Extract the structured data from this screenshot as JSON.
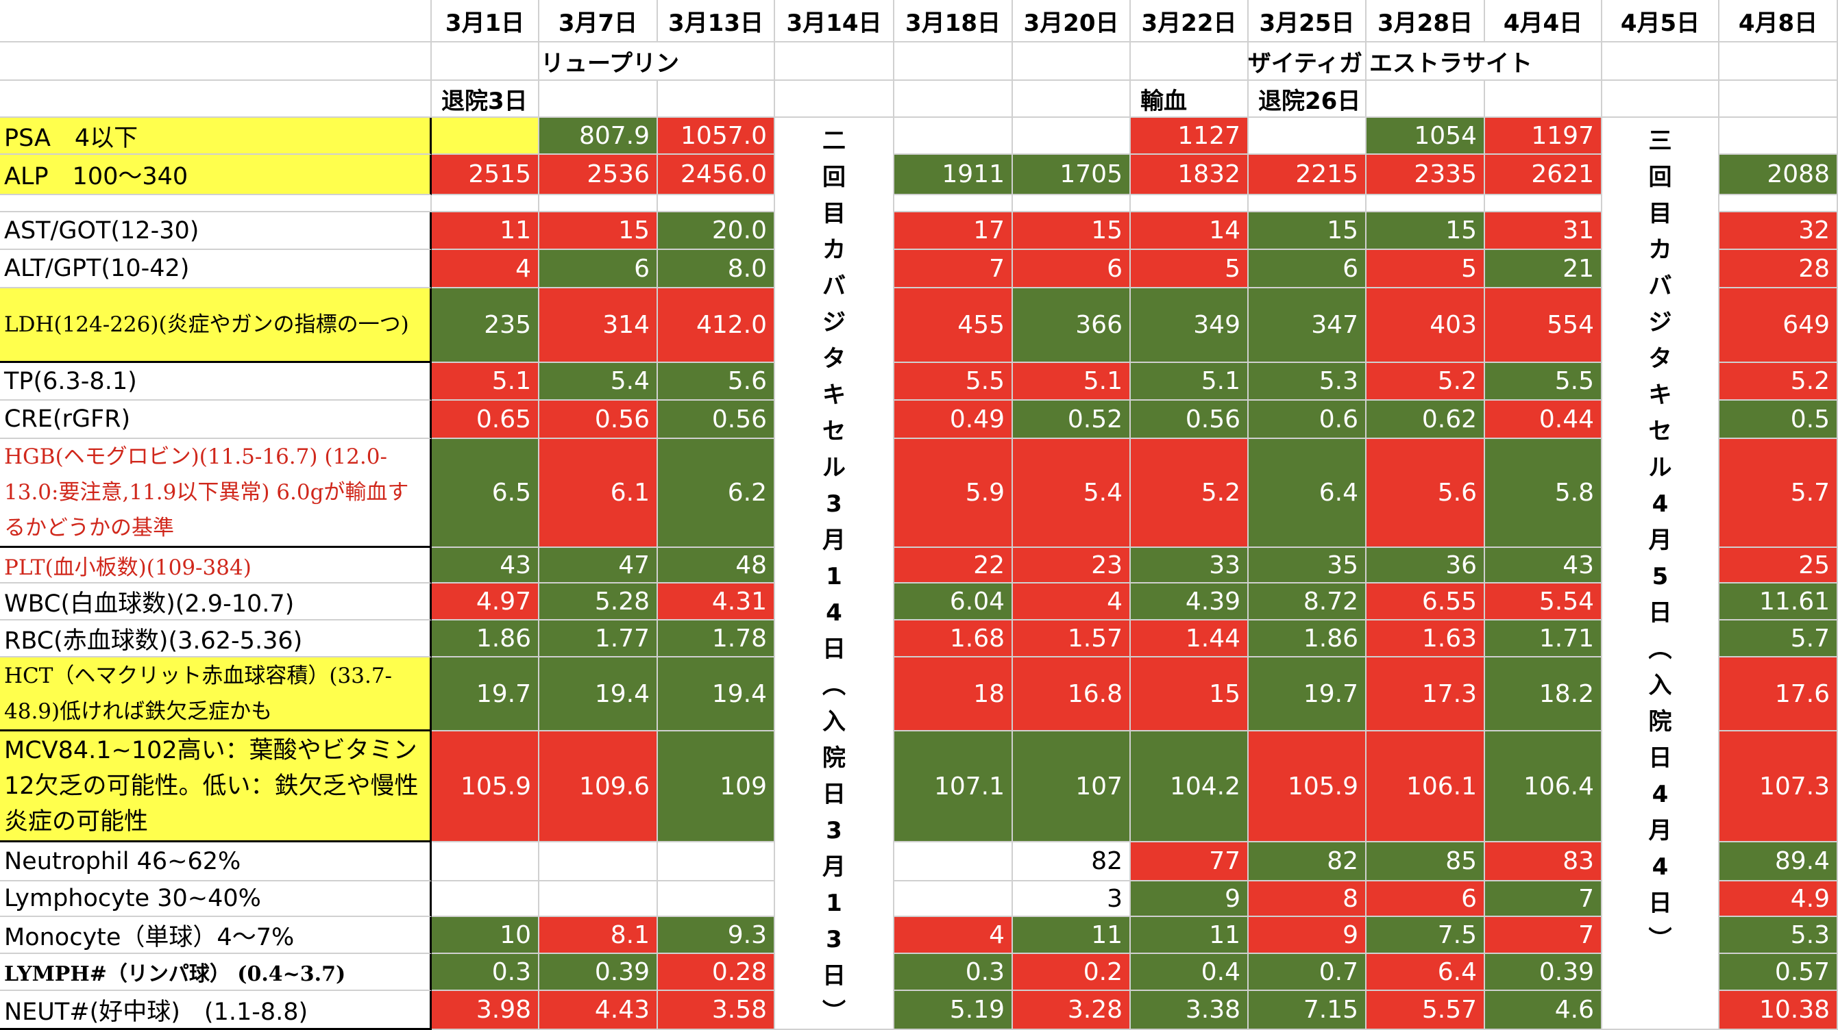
{
  "dates": [
    "3月1日",
    "3月7日",
    "3月13日",
    "3月14日",
    "3月18日",
    "3月20日",
    "3月22日",
    "3月25日",
    "3月28日",
    "4月4日",
    "4月5日",
    "4月8日"
  ],
  "notes": {
    "leuprorelin": "リュープリン",
    "xtandi": "ザイティガ",
    "estracyt": "エストラサイト",
    "discharged3": "退院3日",
    "transfusion": "輸血",
    "discharged26": "退院26日"
  },
  "vertical_notes": {
    "mar14": "二回目カバジタキセル3月14日︵入院日3月13日︶",
    "apr5": "三回目カバジタキセル4月5日︵入院日4月4日︶"
  },
  "colors": {
    "red": "#e8372b",
    "green": "#567b32",
    "yellow": "#ffff4d"
  },
  "rows": [
    {
      "label": "PSA　4以下",
      "yellow": true,
      "values": [
        [
          "",
          "y"
        ],
        [
          "807.9",
          "g"
        ],
        [
          "1057.0",
          "r"
        ],
        [
          "1127",
          "r"
        ],
        [
          "",
          "w"
        ],
        [
          "1054",
          "g"
        ],
        [
          "1197",
          "r"
        ]
      ]
    },
    {
      "label": "ALP　100〜340",
      "yellow": true,
      "values": [
        [
          "2515",
          "r"
        ],
        [
          "2536",
          "r"
        ],
        [
          "2456.0",
          "r"
        ],
        [
          "1911",
          "g"
        ],
        [
          "1705",
          "g"
        ],
        [
          "1832",
          "r"
        ],
        [
          "2215",
          "r"
        ],
        [
          "2335",
          "r"
        ],
        [
          "2621",
          "r"
        ],
        [
          "2088",
          "g"
        ]
      ]
    },
    {
      "label": "AST/GOT(12-30)",
      "values": [
        [
          "11",
          "r"
        ],
        [
          "15",
          "r"
        ],
        [
          "20.0",
          "g"
        ],
        [
          "17",
          "r"
        ],
        [
          "15",
          "r"
        ],
        [
          "14",
          "r"
        ],
        [
          "15",
          "g"
        ],
        [
          "15",
          "g"
        ],
        [
          "31",
          "r"
        ],
        [
          "32",
          "r"
        ]
      ]
    },
    {
      "label": "ALT/GPT(10-42)",
      "values": [
        [
          "4",
          "r"
        ],
        [
          "6",
          "g"
        ],
        [
          "8.0",
          "g"
        ],
        [
          "7",
          "r"
        ],
        [
          "6",
          "r"
        ],
        [
          "5",
          "r"
        ],
        [
          "6",
          "g"
        ],
        [
          "5",
          "r"
        ],
        [
          "21",
          "g"
        ],
        [
          "28",
          "r"
        ]
      ]
    },
    {
      "label": "LDH(124-226)(炎症やガンの指標の一つ)",
      "yellow": true,
      "values": [
        [
          "235",
          "g"
        ],
        [
          "314",
          "r"
        ],
        [
          "412.0",
          "r"
        ],
        [
          "455",
          "r"
        ],
        [
          "366",
          "g"
        ],
        [
          "349",
          "g"
        ],
        [
          "347",
          "g"
        ],
        [
          "403",
          "r"
        ],
        [
          "554",
          "r"
        ],
        [
          "649",
          "r"
        ]
      ]
    },
    {
      "label": "TP(6.3-8.1)",
      "values": [
        [
          "5.1",
          "r"
        ],
        [
          "5.4",
          "g"
        ],
        [
          "5.6",
          "g"
        ],
        [
          "5.5",
          "r"
        ],
        [
          "5.1",
          "r"
        ],
        [
          "5.1",
          "g"
        ],
        [
          "5.3",
          "g"
        ],
        [
          "5.2",
          "r"
        ],
        [
          "5.5",
          "g"
        ],
        [
          "5.2",
          "r"
        ]
      ]
    },
    {
      "label": "CRE(rGFR)",
      "values": [
        [
          "0.65",
          "r"
        ],
        [
          "0.56",
          "r"
        ],
        [
          "0.56",
          "g"
        ],
        [
          "0.49",
          "r"
        ],
        [
          "0.52",
          "g"
        ],
        [
          "0.56",
          "g"
        ],
        [
          "0.6",
          "g"
        ],
        [
          "0.62",
          "g"
        ],
        [
          "0.44",
          "r"
        ],
        [
          "0.5",
          "g"
        ]
      ]
    },
    {
      "label": "HGB(ヘモグロビン)(11.5-16.7) (12.0-13.0:要注意,11.9以下異常) 6.0gが輸血するかどうかの基準",
      "values": [
        [
          "6.5",
          "g"
        ],
        [
          "6.1",
          "r"
        ],
        [
          "6.2",
          "g"
        ],
        [
          "5.9",
          "r"
        ],
        [
          "5.4",
          "r"
        ],
        [
          "5.2",
          "r"
        ],
        [
          "6.4",
          "g"
        ],
        [
          "5.6",
          "r"
        ],
        [
          "5.8",
          "g"
        ],
        [
          "5.7",
          "r"
        ]
      ]
    },
    {
      "label": "PLT(血小板数)(109-384)",
      "values": [
        [
          "43",
          "g"
        ],
        [
          "47",
          "g"
        ],
        [
          "48",
          "g"
        ],
        [
          "22",
          "r"
        ],
        [
          "23",
          "r"
        ],
        [
          "33",
          "g"
        ],
        [
          "35",
          "g"
        ],
        [
          "36",
          "g"
        ],
        [
          "43",
          "g"
        ],
        [
          "25",
          "r"
        ]
      ]
    },
    {
      "label": "WBC(白血球数)(2.9-10.7)",
      "values": [
        [
          "4.97",
          "r"
        ],
        [
          "5.28",
          "g"
        ],
        [
          "4.31",
          "r"
        ],
        [
          "6.04",
          "g"
        ],
        [
          "4",
          "r"
        ],
        [
          "4.39",
          "g"
        ],
        [
          "8.72",
          "g"
        ],
        [
          "6.55",
          "r"
        ],
        [
          "5.54",
          "r"
        ],
        [
          "11.61",
          "g"
        ]
      ]
    },
    {
      "label": "RBC(赤血球数)(3.62-5.36)",
      "values": [
        [
          "1.86",
          "g"
        ],
        [
          "1.77",
          "g"
        ],
        [
          "1.78",
          "g"
        ],
        [
          "1.68",
          "r"
        ],
        [
          "1.57",
          "r"
        ],
        [
          "1.44",
          "r"
        ],
        [
          "1.86",
          "g"
        ],
        [
          "1.63",
          "r"
        ],
        [
          "1.71",
          "g"
        ],
        [
          "5.7",
          "g"
        ]
      ]
    },
    {
      "label": "HCT（ヘマクリット赤血球容積）(33.7-48.9)低ければ鉄欠乏症かも",
      "yellow": true,
      "values": [
        [
          "19.7",
          "g"
        ],
        [
          "19.4",
          "g"
        ],
        [
          "19.4",
          "g"
        ],
        [
          "18",
          "r"
        ],
        [
          "16.8",
          "r"
        ],
        [
          "15",
          "r"
        ],
        [
          "19.7",
          "g"
        ],
        [
          "17.3",
          "r"
        ],
        [
          "18.2",
          "g"
        ],
        [
          "17.6",
          "r"
        ]
      ]
    },
    {
      "label": "MCV84.1~102高い：葉酸やビタミン12欠乏の可能性。低い：鉄欠乏や慢性炎症の可能性",
      "yellow": true,
      "values": [
        [
          "105.9",
          "r"
        ],
        [
          "109.6",
          "r"
        ],
        [
          "109",
          "g"
        ],
        [
          "107.1",
          "g"
        ],
        [
          "107",
          "g"
        ],
        [
          "104.2",
          "g"
        ],
        [
          "105.9",
          "r"
        ],
        [
          "106.1",
          "r"
        ],
        [
          "106.4",
          "g"
        ],
        [
          "107.3",
          "r"
        ]
      ]
    },
    {
      "label": "Neutrophil 46~62%",
      "values": [
        [
          "",
          "w"
        ],
        [
          "",
          "w"
        ],
        [
          "",
          "w"
        ],
        [
          "",
          "w"
        ],
        [
          "82",
          "w"
        ],
        [
          "77",
          "r"
        ],
        [
          "82",
          "g"
        ],
        [
          "85",
          "g"
        ],
        [
          "83",
          "r"
        ],
        [
          "89.4",
          "g"
        ]
      ]
    },
    {
      "label": "Lymphocyte 30~40%",
      "values": [
        [
          "",
          "w"
        ],
        [
          "",
          "w"
        ],
        [
          "",
          "w"
        ],
        [
          "",
          "w"
        ],
        [
          "3",
          "w"
        ],
        [
          "9",
          "g"
        ],
        [
          "8",
          "r"
        ],
        [
          "6",
          "r"
        ],
        [
          "7",
          "g"
        ],
        [
          "4.9",
          "r"
        ]
      ]
    },
    {
      "label": "Monocyte（単球）4〜7%",
      "values": [
        [
          "10",
          "g"
        ],
        [
          "8.1",
          "r"
        ],
        [
          "9.3",
          "g"
        ],
        [
          "4",
          "r"
        ],
        [
          "11",
          "g"
        ],
        [
          "11",
          "g"
        ],
        [
          "9",
          "r"
        ],
        [
          "7.5",
          "g"
        ],
        [
          "7",
          "r"
        ],
        [
          "5.3",
          "g"
        ]
      ]
    },
    {
      "label": "LYMPH#（リンパ球） (0.4~3.7)",
      "values": [
        [
          "0.3",
          "g"
        ],
        [
          "0.39",
          "g"
        ],
        [
          "0.28",
          "r"
        ],
        [
          "0.3",
          "g"
        ],
        [
          "0.2",
          "r"
        ],
        [
          "0.4",
          "g"
        ],
        [
          "0.7",
          "g"
        ],
        [
          "6.4",
          "r"
        ],
        [
          "0.39",
          "g"
        ],
        [
          "0.57",
          "g"
        ]
      ]
    },
    {
      "label": "NEUT#(好中球)　(1.1-8.8)",
      "values": [
        [
          "3.98",
          "r"
        ],
        [
          "4.43",
          "r"
        ],
        [
          "3.58",
          "r"
        ],
        [
          "5.19",
          "g"
        ],
        [
          "3.28",
          "r"
        ],
        [
          "3.38",
          "g"
        ],
        [
          "7.15",
          "g"
        ],
        [
          "5.57",
          "r"
        ],
        [
          "4.6",
          "g"
        ],
        [
          "10.38",
          "r"
        ]
      ]
    }
  ]
}
